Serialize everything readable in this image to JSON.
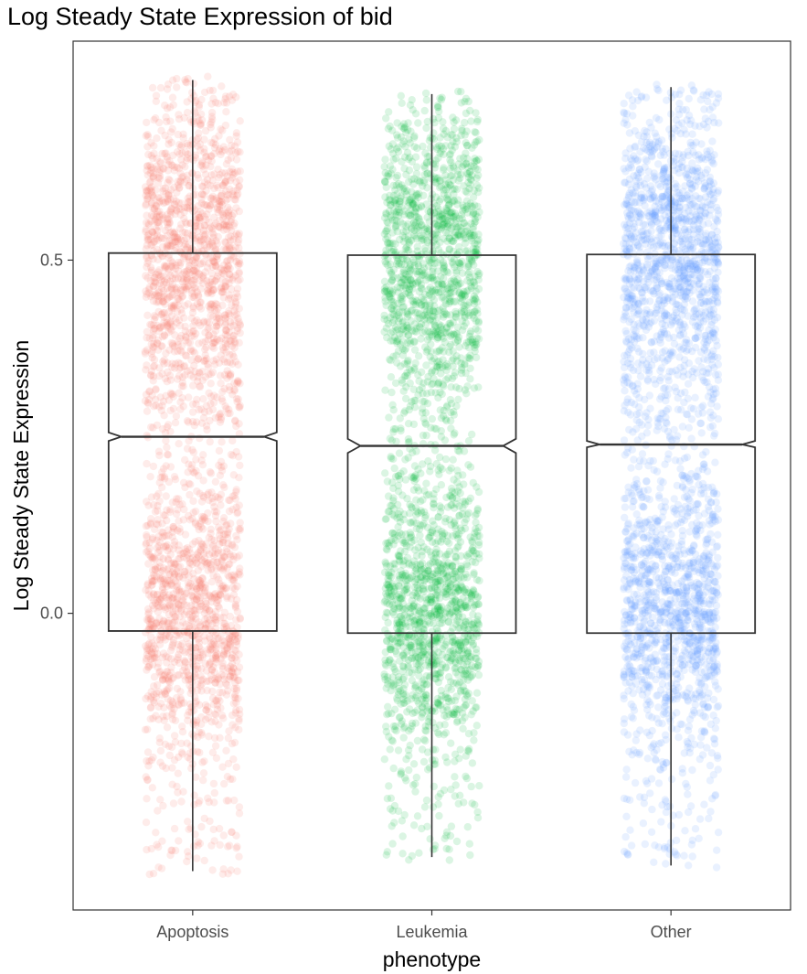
{
  "chart_data": {
    "type": "boxplot",
    "title": "Log Steady State Expression of bid",
    "xlabel": "phenotype",
    "ylabel": "Log Steady State Expression",
    "categories": [
      "Apoptosis",
      "Leukemia",
      "Other"
    ],
    "colors": [
      "#F8766D",
      "#00BA38",
      "#619CFF"
    ],
    "ylim": [
      -0.42,
      0.81
    ],
    "yticks": [
      0.0,
      0.5
    ],
    "ytick_labels": [
      "0.0",
      "0.5"
    ],
    "grid": false,
    "notched": true,
    "jitter_points": true,
    "boxes": [
      {
        "name": "Apoptosis",
        "whisker_low": -0.365,
        "q1": -0.025,
        "median": 0.25,
        "q3": 0.51,
        "whisker_high": 0.755,
        "notch_low": 0.244,
        "notch_high": 0.256,
        "point_min": -0.37,
        "point_max": 0.76
      },
      {
        "name": "Leukemia",
        "whisker_low": -0.345,
        "q1": -0.028,
        "median": 0.237,
        "q3": 0.507,
        "whisker_high": 0.735,
        "notch_low": 0.227,
        "notch_high": 0.247,
        "point_min": -0.35,
        "point_max": 0.74
      },
      {
        "name": "Other",
        "whisker_low": -0.357,
        "q1": -0.028,
        "median": 0.239,
        "q3": 0.508,
        "whisker_high": 0.745,
        "notch_low": 0.235,
        "notch_high": 0.244,
        "point_min": -0.36,
        "point_max": 0.75
      }
    ]
  }
}
